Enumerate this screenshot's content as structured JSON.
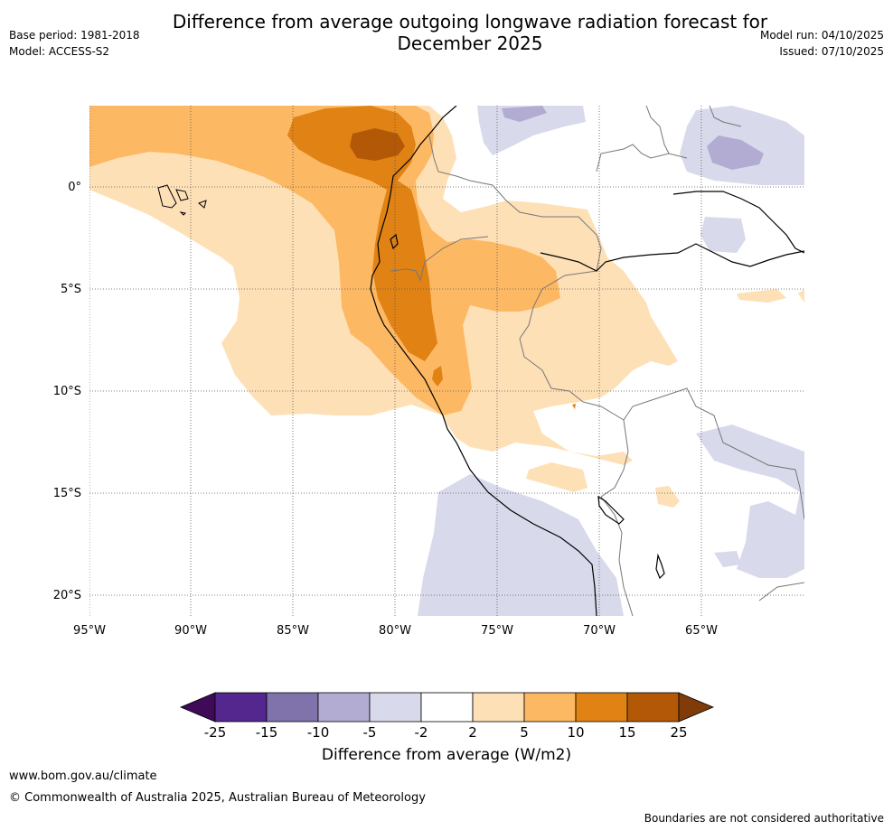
{
  "header": {
    "title_line1": "Difference from average outgoing longwave radiation forecast for",
    "title_line2": "December 2025",
    "base_period": "Base period: 1981-2018",
    "model": "Model: ACCESS-S2",
    "model_run": "Model run: 04/10/2025",
    "issued": "Issued: 07/10/2025"
  },
  "map": {
    "lon_labels": [
      "95°W",
      "90°W",
      "85°W",
      "80°W",
      "75°W",
      "70°W",
      "65°W"
    ],
    "lat_labels": [
      "0°",
      "5°S",
      "10°S",
      "15°S",
      "20°S"
    ],
    "colors": {
      "c_m25": "#3f0a57",
      "c_m20": "#54278f",
      "c_m12": "#8073ac",
      "c_m7": "#b2abd2",
      "c_m3": "#d8daeb",
      "c_0": "#ffffff",
      "c_3": "#fee0b6",
      "c_7": "#fdb863",
      "c_12": "#e08214",
      "c_20": "#b35806",
      "c_25": "#7f3b08"
    }
  },
  "colorbar": {
    "title": "Difference from average (W/m2)",
    "ticks": [
      "-25",
      "-15",
      "-10",
      "-5",
      "-2",
      "2",
      "5",
      "10",
      "15",
      "25"
    ]
  },
  "footer": {
    "url": "www.bom.gov.au/climate",
    "copyright": "© Commonwealth of Australia 2025, Australian Bureau of Meteorology",
    "disclaimer": "Boundaries are not considered authoritative"
  }
}
